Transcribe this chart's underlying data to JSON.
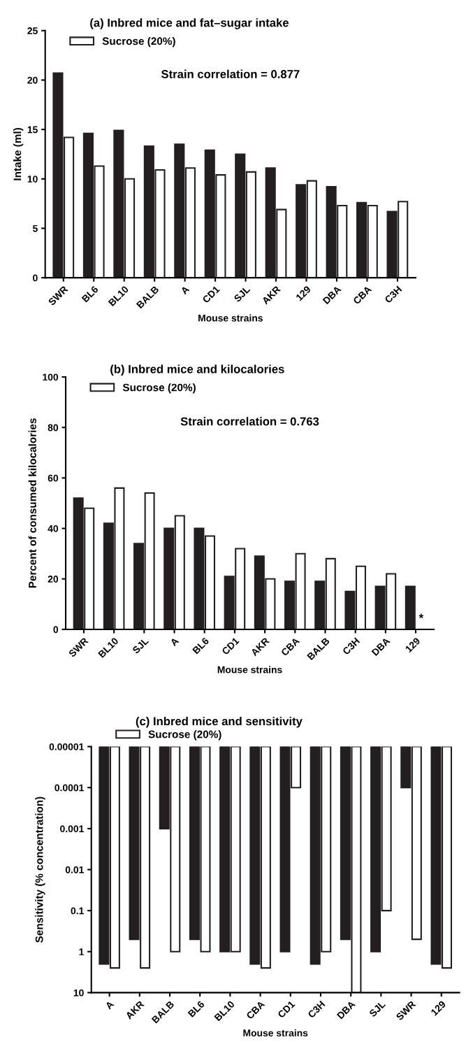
{
  "chart_data": [
    {
      "type": "bar",
      "title": "(a) Inbred mice and fat–sugar intake",
      "xlabel": "Mouse strains",
      "ylabel": "Intake (ml)",
      "categories": [
        "SWR",
        "BL6",
        "BL10",
        "BALB",
        "A",
        "CD1",
        "SJL",
        "AKR",
        "129",
        "DBA",
        "CBA",
        "C3H"
      ],
      "series": [
        {
          "color": "#231f20",
          "values": [
            20.7,
            14.6,
            14.9,
            13.3,
            13.5,
            12.9,
            12.5,
            11.1,
            9.4,
            9.2,
            7.6,
            6.7
          ]
        },
        {
          "name": "Sucrose (20%)",
          "color": "#ffffff",
          "values": [
            14.2,
            11.3,
            10.0,
            10.9,
            11.1,
            10.4,
            10.7,
            6.9,
            9.8,
            7.3,
            7.3,
            7.7
          ]
        }
      ],
      "ylim": [
        0,
        25
      ],
      "yticks": [
        0,
        5,
        10,
        15,
        20,
        25
      ],
      "grid": false,
      "legend": "top left",
      "annotations": [
        "Strain correlation = 0.877"
      ]
    },
    {
      "type": "bar",
      "title": "(b) Inbred mice and kilocalories",
      "xlabel": "Mouse strains",
      "ylabel": "Percent of consumed kilocalories",
      "categories": [
        "SWR",
        "BL10",
        "SJL",
        "A",
        "BL6",
        "CD1",
        "AKR",
        "CBA",
        "BALB",
        "C3H",
        "DBA",
        "129"
      ],
      "series": [
        {
          "color": "#231f20",
          "values": [
            52,
            42,
            34,
            40,
            40,
            21,
            29,
            19,
            19,
            15,
            17,
            17
          ]
        },
        {
          "name": "Sucrose (20%)",
          "color": "#ffffff",
          "values": [
            48,
            56,
            54,
            45,
            37,
            32,
            20,
            30,
            28,
            25,
            22,
            null
          ]
        }
      ],
      "ylim": [
        0,
        100
      ],
      "yticks": [
        0,
        20,
        40,
        60,
        80,
        100
      ],
      "grid": false,
      "legend": "top left",
      "annotations": [
        "Strain correlation = 0.763",
        {
          "text": "*",
          "x": "129",
          "y": 2
        }
      ]
    },
    {
      "type": "bar",
      "title": "(c) Inbred mice and sensitivity",
      "xlabel": "Mouse strains",
      "ylabel": "Sensitivity (% concentration)",
      "categories": [
        "A",
        "AKR",
        "BALB",
        "BL6",
        "BL10",
        "CBA",
        "CD1",
        "C3H",
        "DBA",
        "SJL",
        "SWR",
        "129"
      ],
      "series": [
        {
          "color": "#231f20",
          "values": [
            2,
            0.5,
            0.001,
            0.5,
            1,
            2,
            1,
            2,
            0.5,
            1,
            0.0001,
            2
          ]
        },
        {
          "name": "Sucrose (20%)",
          "color": "#ffffff",
          "values": [
            2.5,
            2.5,
            1,
            1,
            1,
            2.5,
            0.0001,
            1,
            10,
            0.1,
            0.5,
            2.5
          ]
        }
      ],
      "log": "y",
      "ylim": [
        10,
        1e-05
      ],
      "yticks": [
        10,
        1,
        0.1,
        0.01,
        0.001,
        0.0001,
        {
          "value": 1e-05,
          "label": "0.00001"
        }
      ],
      "grid": false,
      "legend": "top"
    }
  ]
}
